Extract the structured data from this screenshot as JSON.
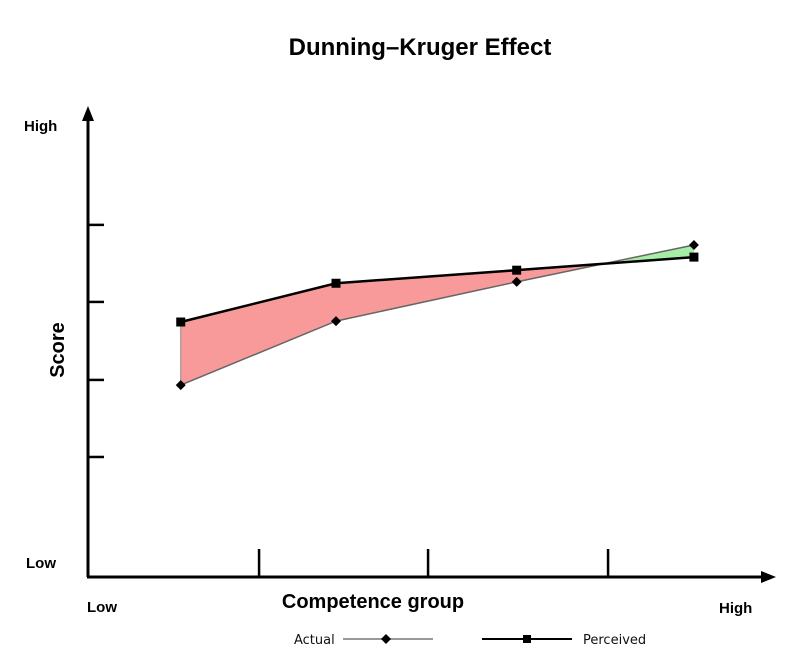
{
  "chart_data": {
    "type": "area",
    "title": "Dunning–Kruger Effect",
    "xlabel": "Competence group",
    "ylabel": "Score",
    "x_axis_end_labels": {
      "low": "Low",
      "high": "High"
    },
    "y_axis_end_labels": {
      "low": "Low",
      "high": "High"
    },
    "xlim": [
      0,
      100
    ],
    "ylim": [
      0,
      100
    ],
    "x_ticks": [
      24.9,
      49.5,
      75.7
    ],
    "y_ticks": [
      25.7,
      42.2,
      58.9,
      75.4
    ],
    "x": [
      13.5,
      36.1,
      62.4,
      88.2
    ],
    "series": [
      {
        "name": "Actual",
        "values": [
          41.1,
          54.8,
          63.2,
          71.1
        ],
        "color": "#888888",
        "marker": "diamond"
      },
      {
        "name": "Perceived",
        "values": [
          54.6,
          62.9,
          65.7,
          68.5
        ],
        "color": "#000000",
        "marker": "square"
      }
    ],
    "fill_overestimate_color": "#f99a9a",
    "fill_underestimate_color": "#a6eea6",
    "grid": false,
    "legend_placement": "bottom"
  }
}
